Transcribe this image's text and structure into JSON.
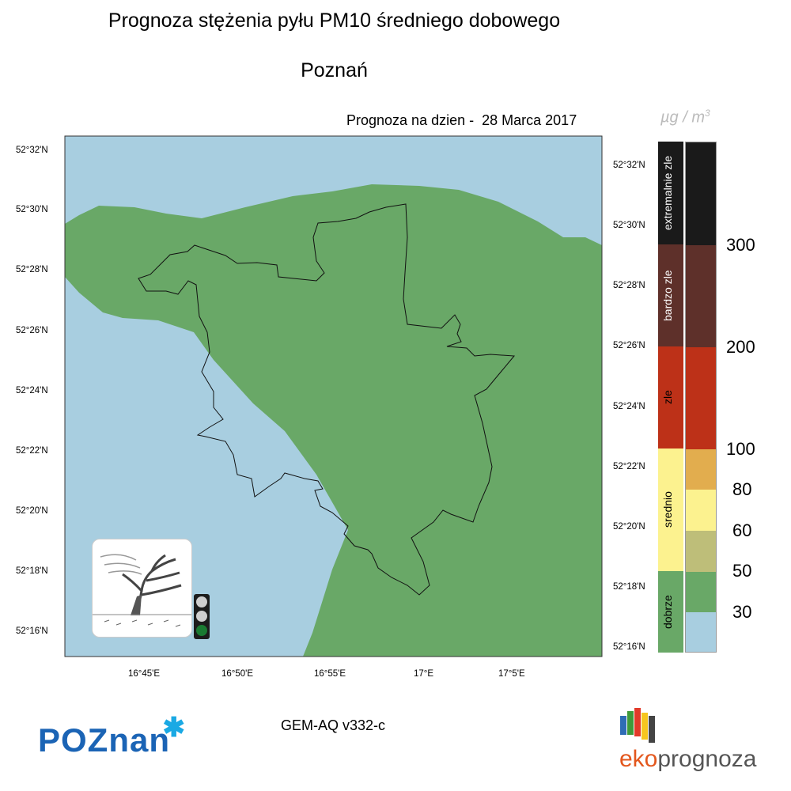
{
  "header": {
    "title": "Prognoza stężenia pyłu PM10 średniego dobowego",
    "city": "Poznań",
    "forecast_label": "Prognoza na dzien -",
    "forecast_date": "28 Marca 2017"
  },
  "map": {
    "lat_labels": [
      "52°32'N",
      "52°30'N",
      "52°28'N",
      "52°26'N",
      "52°24'N",
      "52°22'N",
      "52°20'N",
      "52°18'N",
      "52°16'N"
    ],
    "lat_labels_right": [
      "52°32'N",
      "52°30'N",
      "52°28'N",
      "52°26'N",
      "52°24'N",
      "52°22'N",
      "52°20'N",
      "52°18'N",
      "52°16'N"
    ],
    "lon_labels": [
      "16°45'E",
      "16°50'E",
      "16°55'E",
      "17°E",
      "17°5'E"
    ],
    "colors": {
      "good": "#69a867",
      "very_good": "#a8cee0",
      "border": "#111111"
    },
    "traffic_light": [
      "off",
      "off",
      "green"
    ]
  },
  "legend": {
    "unit_base": "µg / m",
    "unit_sup": "3",
    "categories": [
      {
        "label": "extremalnie zle",
        "color": "#1a1a1a"
      },
      {
        "label": "bardzo zle",
        "color": "#5e302a"
      },
      {
        "label": "zle",
        "color": "#bd3118"
      },
      {
        "label": "srednio",
        "color": "#fcf28f"
      },
      {
        "label": "dobrze",
        "color": "#69a867"
      }
    ],
    "scale_colors": [
      "#1a1a1a",
      "#5e302a",
      "#bd3118",
      "#e2ad4e",
      "#fcf28f",
      "#bebe79",
      "#69a867",
      "#a8cee0"
    ],
    "thresholds": [
      "300",
      "200",
      "100",
      "80",
      "60",
      "50",
      "30"
    ]
  },
  "footer": {
    "logo_left_text": "POZnan",
    "model": "GEM-AQ v332-c",
    "logo_right_part1": "eko",
    "logo_right_part2": "prognoza"
  }
}
